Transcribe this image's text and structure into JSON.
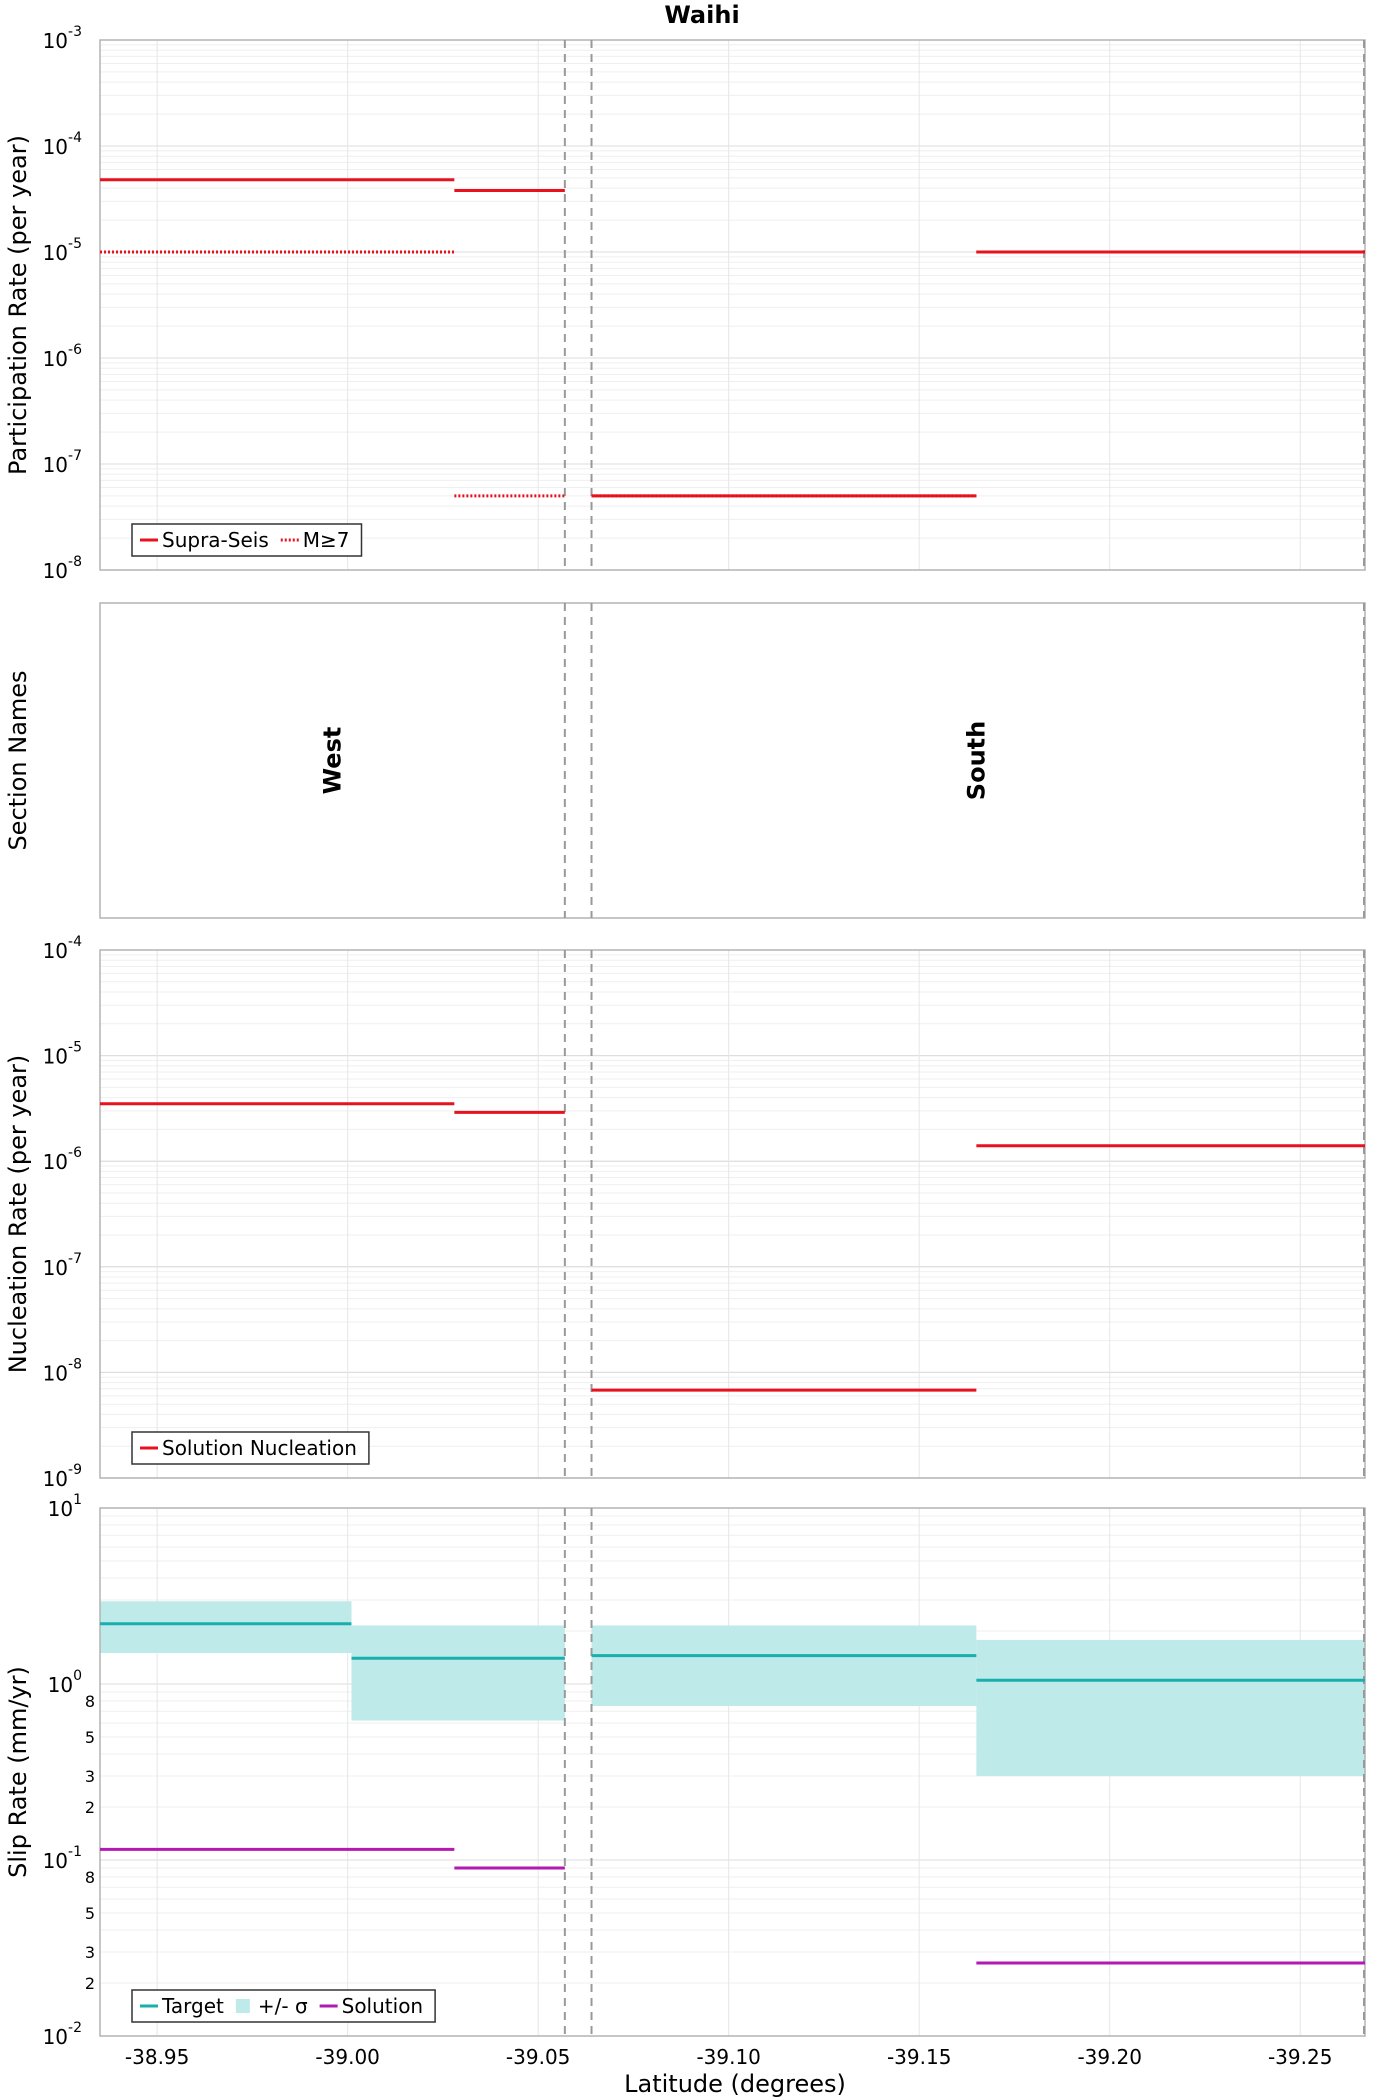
{
  "title": "Waihi",
  "xlabel": "Latitude (degrees)",
  "x_ticks": [
    "-38.95",
    "-39.00",
    "-39.05",
    "-39.10",
    "-39.15",
    "-39.20",
    "-39.25"
  ],
  "y_tick_labels": {
    "participation": [
      "10-3",
      "10-4",
      "10-5",
      "10-6",
      "10-7",
      "10-8"
    ],
    "nucleation": [
      "10-4",
      "10-5",
      "10-6",
      "10-7",
      "10-8",
      "10-9"
    ],
    "slip_decades": [
      "101",
      "100",
      "10-1",
      "10-2"
    ],
    "slip_minor": [
      "8",
      "5",
      "3",
      "2"
    ]
  },
  "colors": {
    "supra": "#e8121f",
    "target": "#1aaeae",
    "sigma": "#bfeaea",
    "solution": "#b21ab2",
    "grid": "#e6e6e6",
    "divider": "#999999"
  },
  "chart_data": [
    {
      "type": "line",
      "ylabel": "Participation Rate (per year)",
      "yscale": "log",
      "ylim": [
        1e-08,
        0.001
      ],
      "xlim": [
        -38.935,
        -39.267
      ],
      "series": [
        {
          "name": "Supra-Seis",
          "style": "solid",
          "segments": [
            {
              "x": [
                -38.935,
                -39.028
              ],
              "y": 4.8e-05
            },
            {
              "x": [
                -39.028,
                -39.057
              ],
              "y": 3.8e-05
            },
            {
              "x": [
                -39.064,
                -39.165
              ],
              "y": 5e-08
            },
            {
              "x": [
                -39.165,
                -39.267
              ],
              "y": 1e-05
            }
          ]
        },
        {
          "name": "M≥7",
          "style": "dotted",
          "segments": [
            {
              "x": [
                -38.935,
                -39.028
              ],
              "y": 1e-05
            },
            {
              "x": [
                -39.028,
                -39.057
              ],
              "y": 5e-08
            },
            {
              "x": [
                -39.064,
                -39.165
              ],
              "y": 5e-08
            },
            {
              "x": [
                -39.165,
                -39.267
              ],
              "y": 1e-05
            }
          ]
        }
      ],
      "legend": [
        "Supra-Seis",
        "M≥7"
      ],
      "legend_position": "bottom-left"
    },
    {
      "type": "table",
      "ylabel": "Section Names",
      "sections": [
        {
          "name": "West",
          "x": -38.996
        },
        {
          "name": "South",
          "x": -39.165
        }
      ]
    },
    {
      "type": "line",
      "ylabel": "Nucleation Rate (per year)",
      "yscale": "log",
      "ylim": [
        1e-09,
        0.0001
      ],
      "xlim": [
        -38.935,
        -39.267
      ],
      "series": [
        {
          "name": "Solution Nucleation",
          "segments": [
            {
              "x": [
                -38.935,
                -39.028
              ],
              "y": 3.5e-06
            },
            {
              "x": [
                -39.028,
                -39.057
              ],
              "y": 2.9e-06
            },
            {
              "x": [
                -39.064,
                -39.165
              ],
              "y": 6.8e-09
            },
            {
              "x": [
                -39.165,
                -39.267
              ],
              "y": 1.4e-06
            }
          ]
        }
      ],
      "legend": [
        "Solution Nucleation"
      ],
      "legend_position": "bottom-left"
    },
    {
      "type": "area",
      "ylabel": "Slip Rate (mm/yr)",
      "yscale": "log",
      "ylim": [
        0.01,
        10
      ],
      "xlim": [
        -38.935,
        -39.267
      ],
      "series": [
        {
          "name": "Target",
          "segments": [
            {
              "x": [
                -38.935,
                -39.001
              ],
              "y": 2.2
            },
            {
              "x": [
                -39.001,
                -39.057
              ],
              "y": 1.4
            },
            {
              "x": [
                -39.064,
                -39.165
              ],
              "y": 1.45
            },
            {
              "x": [
                -39.165,
                -39.267
              ],
              "y": 1.05
            }
          ]
        },
        {
          "name": "+/- σ",
          "segments": [
            {
              "x": [
                -38.935,
                -39.001
              ],
              "low": 1.5,
              "high": 2.95
            },
            {
              "x": [
                -39.001,
                -39.057
              ],
              "low": 0.62,
              "high": 2.15
            },
            {
              "x": [
                -39.064,
                -39.165
              ],
              "low": 0.75,
              "high": 2.15
            },
            {
              "x": [
                -39.165,
                -39.267
              ],
              "low": 0.3,
              "high": 1.78
            }
          ]
        },
        {
          "name": "Solution",
          "segments": [
            {
              "x": [
                -38.935,
                -39.028
              ],
              "y": 0.115
            },
            {
              "x": [
                -39.028,
                -39.057
              ],
              "y": 0.09
            },
            {
              "x": [
                -39.165,
                -39.267
              ],
              "y": 0.026
            }
          ]
        }
      ],
      "legend": [
        "Target",
        "+/- σ",
        "Solution"
      ],
      "legend_position": "bottom-left"
    }
  ]
}
